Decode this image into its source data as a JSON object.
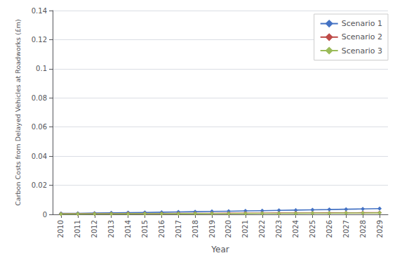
{
  "chart_data": {
    "type": "line",
    "x": [
      2010,
      2011,
      2012,
      2013,
      2014,
      2015,
      2016,
      2017,
      2018,
      2019,
      2020,
      2021,
      2022,
      2023,
      2024,
      2025,
      2026,
      2027,
      2028,
      2029
    ],
    "series": [
      {
        "name": "Scenario 1",
        "color": "#4472C4",
        "values": [
          0.00065,
          0.00075,
          0.0009,
          0.00105,
          0.0012,
          0.00135,
          0.0015,
          0.00168,
          0.00185,
          0.00202,
          0.0022,
          0.00238,
          0.00256,
          0.00275,
          0.00294,
          0.00314,
          0.00334,
          0.00355,
          0.00376,
          0.004
        ]
      },
      {
        "name": "Scenario 2",
        "color": "#BE4B48",
        "values": [
          0.0004,
          0.00042,
          0.00046,
          0.0005,
          0.00055,
          0.00058,
          0.00062,
          0.00066,
          0.0007,
          0.00074,
          0.00078,
          0.00082,
          0.00086,
          0.0009,
          0.00094,
          0.00098,
          0.00102,
          0.00108,
          0.00113,
          0.0012
        ]
      },
      {
        "name": "Scenario 3",
        "color": "#9BBB59",
        "values": [
          0.0003,
          0.00032,
          0.00035,
          0.00038,
          0.00042,
          0.00045,
          0.00048,
          0.00052,
          0.00055,
          0.00058,
          0.00062,
          0.00066,
          0.0007,
          0.00074,
          0.00078,
          0.00082,
          0.00086,
          0.00092,
          0.00097,
          0.00105
        ]
      }
    ],
    "xlabel": "Year",
    "ylabel": "Carbon Costs from Delayed Vehicles at Roadworks (£m)",
    "xlim": [
      2009.5,
      2029.5
    ],
    "xticks": [
      2010,
      2011,
      2012,
      2013,
      2014,
      2015,
      2016,
      2017,
      2018,
      2019,
      2020,
      2021,
      2022,
      2023,
      2024,
      2025,
      2026,
      2027,
      2028,
      2029
    ],
    "ylim": [
      0,
      0.14
    ],
    "yticks": [
      0,
      0.02,
      0.04,
      0.06,
      0.08,
      0.1,
      0.12,
      0.14
    ],
    "grid": "y",
    "legend": "upper right",
    "marker": "diamond"
  }
}
